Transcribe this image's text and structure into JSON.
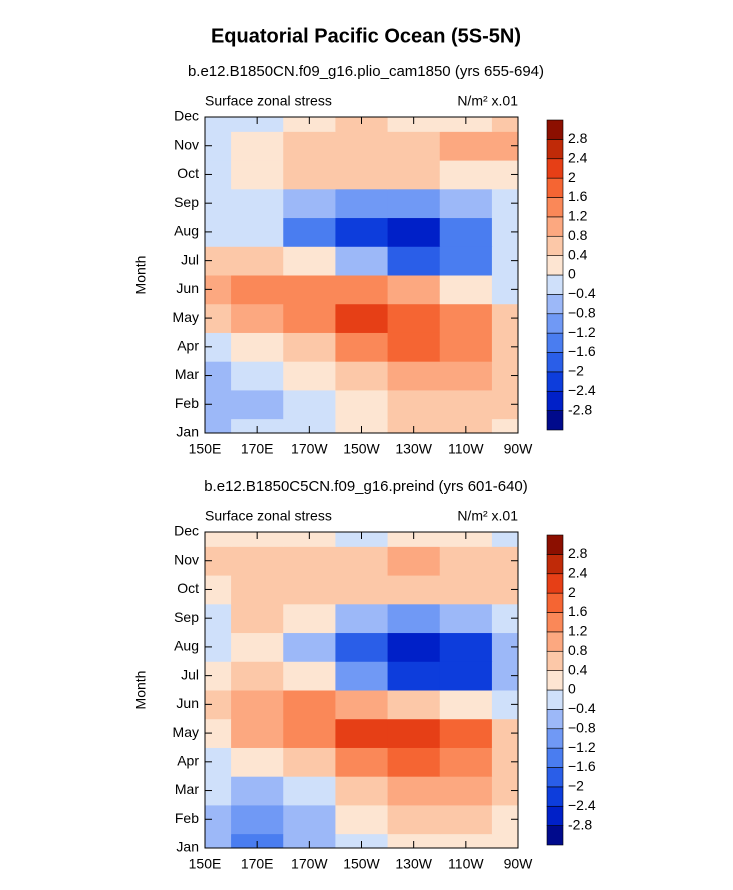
{
  "title": "Equatorial Pacific Ocean (5S-5N)",
  "chart_data": [
    {
      "type": "contour",
      "subtitle": "b.e12.B1850CN.f09_g16.plio_cam1850 (yrs 655-694)",
      "left_label": "Surface zonal stress",
      "right_label": "N/m² x.01",
      "ylabel": "Month",
      "categories": [
        "Jan",
        "Feb",
        "Mar",
        "Apr",
        "May",
        "Jun",
        "Jul",
        "Aug",
        "Sep",
        "Oct",
        "Nov",
        "Dec"
      ],
      "x": [
        150,
        170,
        190,
        210,
        230,
        250,
        270
      ],
      "xlim": [
        150,
        270
      ],
      "xticks": [
        {
          "value": 150,
          "label": "150E"
        },
        {
          "value": 170,
          "label": "170E"
        },
        {
          "value": 190,
          "label": "170W"
        },
        {
          "value": 210,
          "label": "150W"
        },
        {
          "value": 230,
          "label": "130W"
        },
        {
          "value": 250,
          "label": "110W"
        },
        {
          "value": 270,
          "label": "90W"
        }
      ],
      "values": [
        [
          -0.6,
          -0.4,
          -0.2,
          0.2,
          0.4,
          0.4,
          0.2
        ],
        [
          -0.6,
          -0.5,
          -0.2,
          0.3,
          0.6,
          0.6,
          0.4
        ],
        [
          -0.5,
          -0.3,
          0.1,
          0.5,
          0.8,
          1.0,
          0.6
        ],
        [
          -0.2,
          0.2,
          0.6,
          1.2,
          1.6,
          1.4,
          0.6
        ],
        [
          0.4,
          0.9,
          1.5,
          2.2,
          1.8,
          1.2,
          0.4
        ],
        [
          0.8,
          1.2,
          1.4,
          1.2,
          0.8,
          0.2,
          -0.2
        ],
        [
          0.4,
          0.4,
          0.2,
          -0.6,
          -1.8,
          -1.4,
          -0.4
        ],
        [
          -0.2,
          -0.4,
          -1.4,
          -2.4,
          -2.6,
          -1.4,
          -0.4
        ],
        [
          -0.2,
          -0.4,
          -0.6,
          -1.2,
          -1.2,
          -0.8,
          -0.2
        ],
        [
          -0.2,
          0.1,
          0.4,
          0.5,
          0.4,
          0.3,
          0.2
        ],
        [
          -0.2,
          0.2,
          0.5,
          0.7,
          0.6,
          0.8,
          1.0
        ],
        [
          -0.2,
          -0.1,
          0.2,
          0.4,
          0.3,
          0.3,
          0.4
        ]
      ],
      "levels": [
        -2.8,
        {
          "value": -2.4,
          "label": "−2.4"
        },
        {
          "value": -2,
          "label": "−2"
        },
        {
          "value": -1.6,
          "label": "−1.6"
        },
        {
          "value": -1.2,
          "label": "−1.2"
        },
        {
          "value": -0.8,
          "label": "−0.8"
        },
        {
          "value": -0.4,
          "label": "−0.4"
        },
        0,
        0.4,
        0.8,
        1.2,
        1.6,
        2,
        2.4,
        2.8
      ],
      "colors": [
        "#000a8c",
        "#0020c8",
        "#0d3ddc",
        "#2a5ee8",
        "#4a7df0",
        "#7099f5",
        "#9cb8f8",
        "#cfe0fa",
        "#fde5d2",
        "#fcc8a8",
        "#fca880",
        "#fa8858",
        "#f56533",
        "#e63f16",
        "#c02a08",
        "#8c0f00"
      ]
    },
    {
      "type": "contour",
      "subtitle": "b.e12.B1850C5CN.f09_g16.preind (yrs 601-640)",
      "left_label": "Surface zonal stress",
      "right_label": "N/m² x.01",
      "ylabel": "Month",
      "categories": [
        "Jan",
        "Feb",
        "Mar",
        "Apr",
        "May",
        "Jun",
        "Jul",
        "Aug",
        "Sep",
        "Oct",
        "Nov",
        "Dec"
      ],
      "x": [
        150,
        170,
        190,
        210,
        230,
        250,
        270
      ],
      "xlim": [
        150,
        270
      ],
      "xticks": [
        {
          "value": 150,
          "label": "150E"
        },
        {
          "value": 170,
          "label": "170E"
        },
        {
          "value": 190,
          "label": "170W"
        },
        {
          "value": 210,
          "label": "150W"
        },
        {
          "value": 230,
          "label": "130W"
        },
        {
          "value": 250,
          "label": "110W"
        },
        {
          "value": 270,
          "label": "90W"
        }
      ],
      "values": [
        [
          -0.6,
          -1.4,
          -0.8,
          -0.2,
          0.2,
          0.2,
          0.2
        ],
        [
          -0.6,
          -1.0,
          -0.6,
          0.0,
          0.4,
          0.4,
          0.2
        ],
        [
          -0.4,
          -0.6,
          -0.2,
          0.4,
          0.8,
          0.8,
          0.4
        ],
        [
          -0.2,
          0.0,
          0.6,
          1.2,
          1.6,
          1.4,
          0.6
        ],
        [
          0.2,
          0.8,
          1.4,
          2.2,
          2.2,
          1.6,
          0.6
        ],
        [
          0.6,
          1.0,
          1.2,
          0.8,
          0.4,
          0.0,
          -0.4
        ],
        [
          0.2,
          0.6,
          0.0,
          -1.0,
          -2.2,
          -2.2,
          -0.8
        ],
        [
          -0.2,
          0.2,
          -0.6,
          -1.8,
          -2.6,
          -2.2,
          -0.8
        ],
        [
          -0.2,
          0.4,
          0.2,
          -0.6,
          -1.0,
          -0.8,
          -0.2
        ],
        [
          0.2,
          0.6,
          0.6,
          0.6,
          0.5,
          0.5,
          0.4
        ],
        [
          0.4,
          0.6,
          0.6,
          0.6,
          0.8,
          0.6,
          0.6
        ],
        [
          0.2,
          0.2,
          0.0,
          -0.1,
          0.2,
          0.2,
          -0.2
        ]
      ],
      "levels": [
        -2.8,
        {
          "value": -2.4,
          "label": "−2.4"
        },
        {
          "value": -2,
          "label": "−2"
        },
        {
          "value": -1.6,
          "label": "−1.6"
        },
        {
          "value": -1.2,
          "label": "−1.2"
        },
        {
          "value": -0.8,
          "label": "−0.8"
        },
        {
          "value": -0.4,
          "label": "−0.4"
        },
        0,
        0.4,
        0.8,
        1.2,
        1.6,
        2,
        2.4,
        2.8
      ],
      "colors": [
        "#000a8c",
        "#0020c8",
        "#0d3ddc",
        "#2a5ee8",
        "#4a7df0",
        "#7099f5",
        "#9cb8f8",
        "#cfe0fa",
        "#fde5d2",
        "#fcc8a8",
        "#fca880",
        "#fa8858",
        "#f56533",
        "#e63f16",
        "#c02a08",
        "#8c0f00"
      ]
    }
  ]
}
